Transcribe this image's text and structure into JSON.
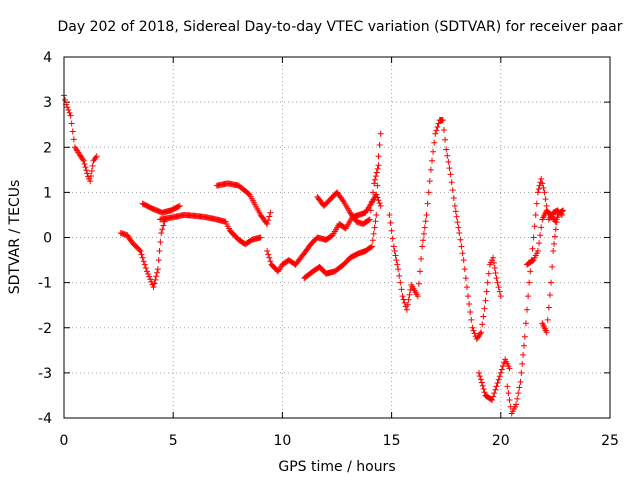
{
  "chart_data": {
    "type": "scatter",
    "title": "Day 202 of 2018, Sidereal Day-to-day VTEC variation (SDTVAR) for receiver paar",
    "xlabel": "GPS time / hours",
    "ylabel": "SDTVAR / TECUs",
    "xlim": [
      0,
      25
    ],
    "ylim": [
      -4,
      4
    ],
    "x_ticks": [
      0,
      5,
      10,
      15,
      20,
      25
    ],
    "y_ticks": [
      -4,
      -3,
      -2,
      -1,
      0,
      1,
      2,
      3,
      4
    ],
    "grid": true,
    "marker": "+",
    "color": "#ff0000",
    "series": [
      {
        "name": "s1",
        "points": [
          [
            0,
            3.15
          ],
          [
            0.1,
            2.95
          ],
          [
            0.3,
            2.7
          ],
          [
            0.5,
            2.0
          ],
          [
            0.7,
            1.85
          ],
          [
            0.9,
            1.7
          ],
          [
            1.1,
            1.35
          ],
          [
            1.2,
            1.25
          ],
          [
            1.35,
            1.7
          ],
          [
            1.5,
            1.8
          ]
        ]
      },
      {
        "name": "s2",
        "points": [
          [
            2.6,
            0.1
          ],
          [
            2.9,
            0.05
          ],
          [
            3.1,
            -0.1
          ],
          [
            3.5,
            -0.3
          ],
          [
            3.8,
            -0.75
          ],
          [
            4.1,
            -1.1
          ],
          [
            4.3,
            -0.7
          ],
          [
            4.45,
            0.1
          ],
          [
            4.6,
            0.35
          ]
        ]
      },
      {
        "name": "s3",
        "points": [
          [
            3.6,
            0.75
          ],
          [
            4.0,
            0.65
          ],
          [
            4.5,
            0.55
          ],
          [
            4.9,
            0.6
          ],
          [
            5.3,
            0.7
          ]
        ]
      },
      {
        "name": "s4",
        "points": [
          [
            4.4,
            0.4
          ],
          [
            5.0,
            0.45
          ],
          [
            5.5,
            0.5
          ],
          [
            6.0,
            0.48
          ],
          [
            6.5,
            0.45
          ],
          [
            7.0,
            0.4
          ],
          [
            7.4,
            0.35
          ],
          [
            7.6,
            0.15
          ],
          [
            8.0,
            -0.05
          ],
          [
            8.3,
            -0.15
          ],
          [
            8.6,
            -0.05
          ],
          [
            9.0,
            0.0
          ]
        ]
      },
      {
        "name": "s5",
        "points": [
          [
            7.0,
            1.15
          ],
          [
            7.5,
            1.2
          ],
          [
            8.0,
            1.15
          ],
          [
            8.5,
            0.95
          ],
          [
            9.0,
            0.5
          ],
          [
            9.3,
            0.3
          ],
          [
            9.45,
            0.55
          ]
        ]
      },
      {
        "name": "s6",
        "points": [
          [
            9.3,
            -0.3
          ],
          [
            9.5,
            -0.6
          ],
          [
            9.8,
            -0.75
          ],
          [
            10.0,
            -0.6
          ],
          [
            10.3,
            -0.5
          ],
          [
            10.6,
            -0.6
          ],
          [
            11.0,
            -0.35
          ],
          [
            11.3,
            -0.15
          ],
          [
            11.6,
            0.0
          ],
          [
            12.0,
            -0.05
          ],
          [
            12.3,
            0.05
          ],
          [
            12.6,
            0.3
          ],
          [
            12.9,
            0.2
          ],
          [
            13.2,
            0.45
          ],
          [
            13.5,
            0.5
          ],
          [
            13.8,
            0.55
          ],
          [
            14.0,
            0.7
          ],
          [
            14.3,
            0.95
          ],
          [
            14.5,
            0.7
          ]
        ]
      },
      {
        "name": "s7",
        "points": [
          [
            11.0,
            -0.9
          ],
          [
            11.4,
            -0.75
          ],
          [
            11.7,
            -0.65
          ],
          [
            12.0,
            -0.8
          ],
          [
            12.4,
            -0.75
          ],
          [
            12.8,
            -0.6
          ],
          [
            13.1,
            -0.45
          ],
          [
            13.5,
            -0.35
          ],
          [
            13.8,
            -0.3
          ],
          [
            14.1,
            -0.2
          ],
          [
            14.3,
            0.5
          ],
          [
            14.4,
            1.8
          ],
          [
            14.5,
            2.3
          ]
        ]
      },
      {
        "name": "s8",
        "points": [
          [
            11.6,
            0.9
          ],
          [
            11.9,
            0.7
          ],
          [
            12.2,
            0.85
          ],
          [
            12.5,
            1.0
          ],
          [
            12.8,
            0.8
          ],
          [
            13.1,
            0.55
          ],
          [
            13.4,
            0.35
          ],
          [
            13.7,
            0.3
          ],
          [
            14.0,
            0.4
          ],
          [
            14.2,
            1.2
          ],
          [
            14.4,
            1.6
          ]
        ]
      },
      {
        "name": "s9",
        "points": [
          [
            14.9,
            0.5
          ],
          [
            15.1,
            -0.2
          ],
          [
            15.3,
            -0.7
          ],
          [
            15.5,
            -1.3
          ],
          [
            15.7,
            -1.6
          ],
          [
            15.9,
            -1.05
          ],
          [
            16.2,
            -1.3
          ],
          [
            16.4,
            -0.2
          ],
          [
            16.6,
            0.5
          ],
          [
            16.8,
            1.5
          ],
          [
            17.0,
            2.3
          ],
          [
            17.2,
            2.6
          ],
          [
            17.35,
            2.6
          ],
          [
            17.5,
            1.95
          ],
          [
            17.7,
            1.4
          ],
          [
            17.9,
            0.7
          ],
          [
            18.1,
            0.1
          ],
          [
            18.3,
            -0.5
          ],
          [
            18.5,
            -1.3
          ],
          [
            18.7,
            -2.0
          ],
          [
            18.9,
            -2.25
          ],
          [
            19.1,
            -2.1
          ],
          [
            19.3,
            -1.4
          ],
          [
            19.5,
            -0.6
          ],
          [
            19.65,
            -0.45
          ],
          [
            19.8,
            -0.9
          ],
          [
            20.0,
            -1.3
          ]
        ]
      },
      {
        "name": "s10",
        "points": [
          [
            19.0,
            -3.0
          ],
          [
            19.3,
            -3.5
          ],
          [
            19.6,
            -3.6
          ],
          [
            19.8,
            -3.3
          ],
          [
            20.0,
            -3.0
          ],
          [
            20.2,
            -2.7
          ],
          [
            20.4,
            -2.9
          ]
        ]
      },
      {
        "name": "s11",
        "points": [
          [
            20.3,
            -3.3
          ],
          [
            20.5,
            -3.9
          ],
          [
            20.7,
            -3.7
          ],
          [
            20.9,
            -3.2
          ],
          [
            21.1,
            -2.2
          ],
          [
            21.3,
            -1.0
          ],
          [
            21.5,
            0.0
          ],
          [
            21.7,
            1.0
          ],
          [
            21.85,
            1.3
          ],
          [
            22.0,
            1.0
          ],
          [
            22.2,
            0.4
          ],
          [
            22.4,
            0.55
          ],
          [
            22.6,
            0.6
          ],
          [
            22.8,
            0.5
          ]
        ]
      },
      {
        "name": "s12",
        "points": [
          [
            21.2,
            -0.6
          ],
          [
            21.5,
            -0.5
          ],
          [
            21.7,
            -0.3
          ],
          [
            21.9,
            0.4
          ],
          [
            22.1,
            0.6
          ],
          [
            22.3,
            0.5
          ],
          [
            22.5,
            0.35
          ],
          [
            22.7,
            0.55
          ],
          [
            22.85,
            0.6
          ]
        ]
      },
      {
        "name": "s13",
        "points": [
          [
            21.9,
            -1.9
          ],
          [
            22.1,
            -2.1
          ],
          [
            22.3,
            -1.0
          ],
          [
            22.4,
            -0.3
          ],
          [
            22.6,
            0.5
          ]
        ]
      }
    ]
  }
}
